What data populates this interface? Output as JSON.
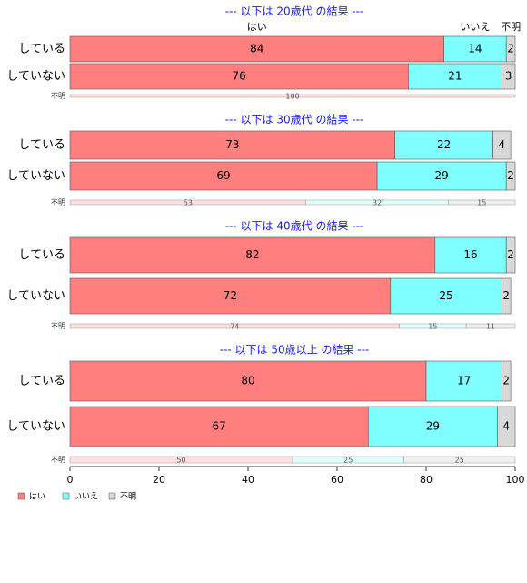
{
  "chart_data": {
    "type": "bar",
    "orientation": "horizontal",
    "stacked": true,
    "xlim": [
      0,
      100
    ],
    "x_ticks": [
      "0",
      "20",
      "40",
      "60",
      "80",
      "100"
    ],
    "grid": false,
    "legend_position": "bottom-left",
    "categories": [
      "はい",
      "いいえ",
      "不明"
    ],
    "category_labels": [
      "はい",
      "いいえ",
      "不明"
    ],
    "colors": {
      "yes": "#ff7f7f",
      "no": "#7fffff",
      "unknown": "#d9d9d9",
      "yes_light": "#ffe0e0",
      "no_light": "#e0ffff",
      "unknown_light": "#f0f0f0",
      "title": "#1a1aff"
    },
    "panels": [
      {
        "title": "--- 以下は 20歳代 の結果 ---",
        "rows": [
          {
            "label": "している",
            "values": [
              84,
              14,
              2
            ]
          },
          {
            "label": "していない",
            "values": [
              76,
              21,
              3
            ]
          }
        ],
        "unknown_row": {
          "label": "不明",
          "values": [
            100,
            0,
            0
          ]
        }
      },
      {
        "title": "--- 以下は 30歳代 の結果 ---",
        "rows": [
          {
            "label": "している",
            "values": [
              73,
              22,
              4
            ]
          },
          {
            "label": "していない",
            "values": [
              69,
              29,
              2
            ]
          }
        ],
        "unknown_row": {
          "label": "不明",
          "values": [
            53,
            32,
            15
          ]
        }
      },
      {
        "title": "--- 以下は 40歳代 の結果 ---",
        "rows": [
          {
            "label": "している",
            "values": [
              82,
              16,
              2
            ]
          },
          {
            "label": "していない",
            "values": [
              72,
              25,
              2
            ]
          }
        ],
        "unknown_row": {
          "label": "不明",
          "values": [
            74,
            15,
            11
          ]
        }
      },
      {
        "title": "--- 以下は 50歳以上 の結果 ---",
        "rows": [
          {
            "label": "している",
            "values": [
              80,
              17,
              2
            ]
          },
          {
            "label": "していない",
            "values": [
              67,
              29,
              4
            ]
          }
        ],
        "unknown_row": {
          "label": "不明",
          "values": [
            50,
            25,
            25
          ]
        }
      }
    ],
    "legend": [
      "はい",
      "いいえ",
      "不明"
    ]
  }
}
